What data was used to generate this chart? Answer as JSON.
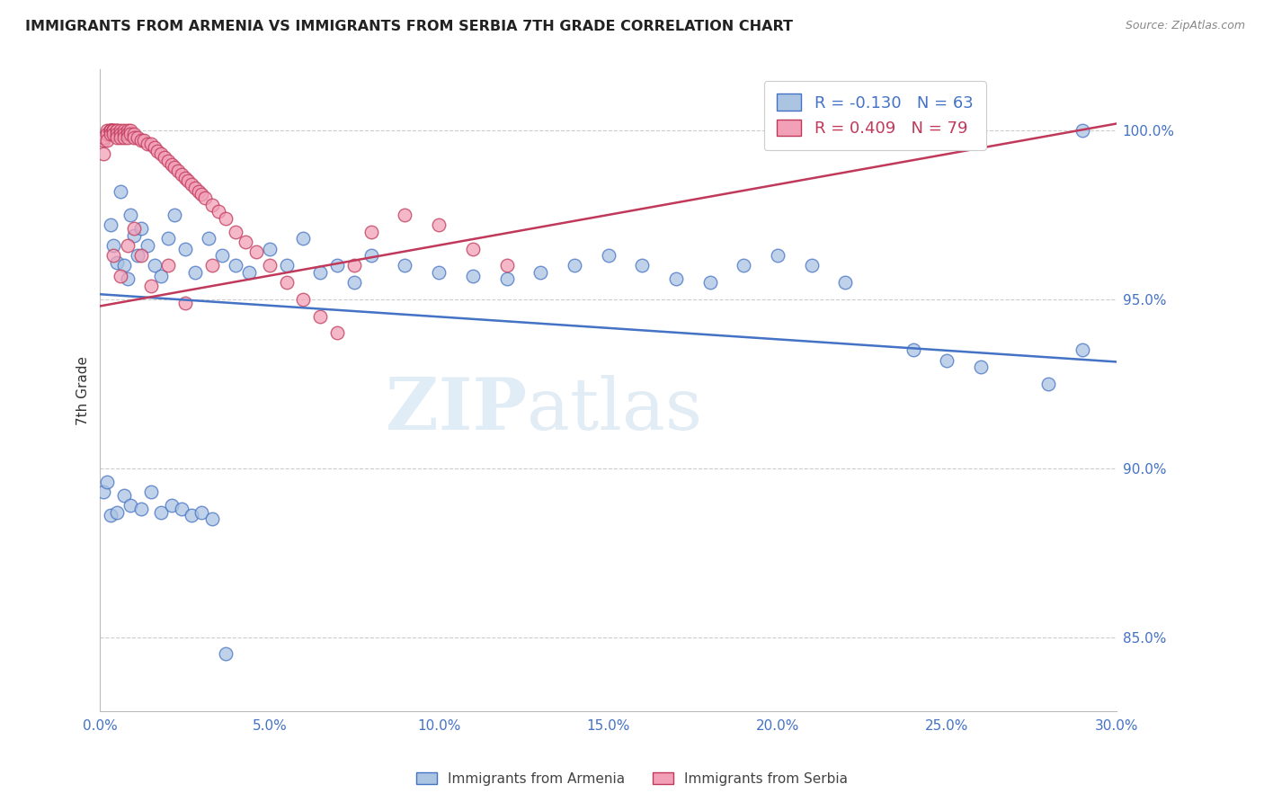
{
  "title": "IMMIGRANTS FROM ARMENIA VS IMMIGRANTS FROM SERBIA 7TH GRADE CORRELATION CHART",
  "source": "Source: ZipAtlas.com",
  "ylabel": "7th Grade",
  "legend_label_blue": "Immigrants from Armenia",
  "legend_label_pink": "Immigrants from Serbia",
  "R_blue": -0.13,
  "N_blue": 63,
  "R_pink": 0.409,
  "N_pink": 79,
  "xmin": 0.0,
  "xmax": 0.3,
  "ymin": 0.828,
  "ymax": 1.018,
  "yticks": [
    0.85,
    0.9,
    0.95,
    1.0
  ],
  "xticks": [
    0.0,
    0.05,
    0.1,
    0.15,
    0.2,
    0.25,
    0.3
  ],
  "color_blue": "#aac4e2",
  "color_pink": "#f2a0b8",
  "trendline_blue": "#4472c4",
  "trendline_pink": "#c0395a",
  "watermark_zip": "ZIP",
  "watermark_atlas": "atlas",
  "blue_x": [
    0.001,
    0.002,
    0.003,
    0.004,
    0.005,
    0.006,
    0.007,
    0.008,
    0.009,
    0.01,
    0.011,
    0.012,
    0.014,
    0.016,
    0.018,
    0.02,
    0.022,
    0.025,
    0.028,
    0.032,
    0.036,
    0.04,
    0.044,
    0.05,
    0.055,
    0.06,
    0.065,
    0.07,
    0.075,
    0.08,
    0.09,
    0.1,
    0.11,
    0.12,
    0.13,
    0.14,
    0.15,
    0.16,
    0.17,
    0.18,
    0.19,
    0.2,
    0.21,
    0.22,
    0.24,
    0.25,
    0.26,
    0.28,
    0.29,
    0.003,
    0.005,
    0.007,
    0.009,
    0.012,
    0.015,
    0.018,
    0.021,
    0.024,
    0.027,
    0.03,
    0.033,
    0.037,
    0.29
  ],
  "blue_y": [
    0.893,
    0.896,
    0.972,
    0.966,
    0.961,
    0.982,
    0.96,
    0.956,
    0.975,
    0.969,
    0.963,
    0.971,
    0.966,
    0.96,
    0.957,
    0.968,
    0.975,
    0.965,
    0.958,
    0.968,
    0.963,
    0.96,
    0.958,
    0.965,
    0.96,
    0.968,
    0.958,
    0.96,
    0.955,
    0.963,
    0.96,
    0.958,
    0.957,
    0.956,
    0.958,
    0.96,
    0.963,
    0.96,
    0.956,
    0.955,
    0.96,
    0.963,
    0.96,
    0.955,
    0.935,
    0.932,
    0.93,
    0.925,
    0.935,
    0.886,
    0.887,
    0.892,
    0.889,
    0.888,
    0.893,
    0.887,
    0.889,
    0.888,
    0.886,
    0.887,
    0.885,
    0.845,
    1.0
  ],
  "pink_x": [
    0.001,
    0.001,
    0.001,
    0.002,
    0.002,
    0.002,
    0.003,
    0.003,
    0.003,
    0.003,
    0.003,
    0.004,
    0.004,
    0.004,
    0.004,
    0.005,
    0.005,
    0.005,
    0.005,
    0.006,
    0.006,
    0.006,
    0.007,
    0.007,
    0.007,
    0.008,
    0.008,
    0.008,
    0.009,
    0.009,
    0.01,
    0.01,
    0.011,
    0.012,
    0.013,
    0.014,
    0.015,
    0.016,
    0.017,
    0.018,
    0.019,
    0.02,
    0.021,
    0.022,
    0.023,
    0.024,
    0.025,
    0.026,
    0.027,
    0.028,
    0.029,
    0.03,
    0.031,
    0.033,
    0.035,
    0.037,
    0.04,
    0.043,
    0.046,
    0.05,
    0.055,
    0.06,
    0.065,
    0.07,
    0.075,
    0.08,
    0.09,
    0.1,
    0.11,
    0.12,
    0.004,
    0.006,
    0.008,
    0.01,
    0.012,
    0.015,
    0.02,
    0.025,
    0.033
  ],
  "pink_y": [
    0.997,
    0.998,
    0.993,
    1.0,
    0.999,
    0.997,
    1.0,
    1.0,
    1.0,
    1.0,
    0.999,
    1.0,
    1.0,
    1.0,
    0.999,
    1.0,
    1.0,
    0.999,
    0.998,
    1.0,
    0.999,
    0.998,
    1.0,
    0.999,
    0.998,
    1.0,
    0.999,
    0.998,
    1.0,
    0.999,
    0.999,
    0.998,
    0.998,
    0.997,
    0.997,
    0.996,
    0.996,
    0.995,
    0.994,
    0.993,
    0.992,
    0.991,
    0.99,
    0.989,
    0.988,
    0.987,
    0.986,
    0.985,
    0.984,
    0.983,
    0.982,
    0.981,
    0.98,
    0.978,
    0.976,
    0.974,
    0.97,
    0.967,
    0.964,
    0.96,
    0.955,
    0.95,
    0.945,
    0.94,
    0.96,
    0.97,
    0.975,
    0.972,
    0.965,
    0.96,
    0.963,
    0.957,
    0.966,
    0.971,
    0.963,
    0.954,
    0.96,
    0.949,
    0.96
  ],
  "blue_trend": [
    0.9515,
    0.9315
  ],
  "pink_trend": [
    0.948,
    1.002
  ]
}
